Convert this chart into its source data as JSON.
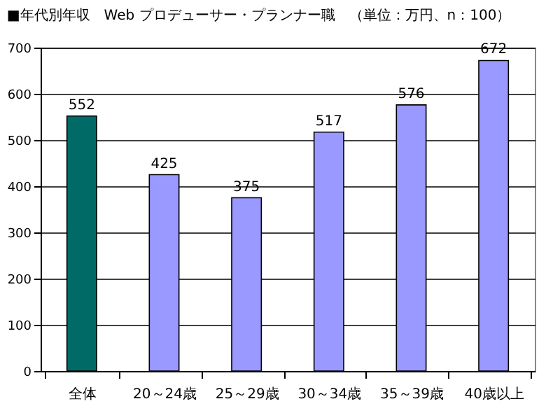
{
  "chart_data": {
    "type": "bar",
    "title": "■年代別年収　Web プロデューサー・プランナー職　（単位：万円、n：100）",
    "categories": [
      "全体",
      "20～24歳",
      "25～29歳",
      "30～34歳",
      "35～39歳",
      "40歳以上"
    ],
    "values": [
      552,
      425,
      375,
      517,
      576,
      672
    ],
    "colors": [
      "#006b66",
      "#9999ff",
      "#9999ff",
      "#9999ff",
      "#9999ff",
      "#9999ff"
    ],
    "ylim": [
      0,
      700
    ],
    "yticks": [
      0,
      100,
      200,
      300,
      400,
      500,
      600,
      700
    ],
    "grid": "y",
    "data_labels": true
  }
}
